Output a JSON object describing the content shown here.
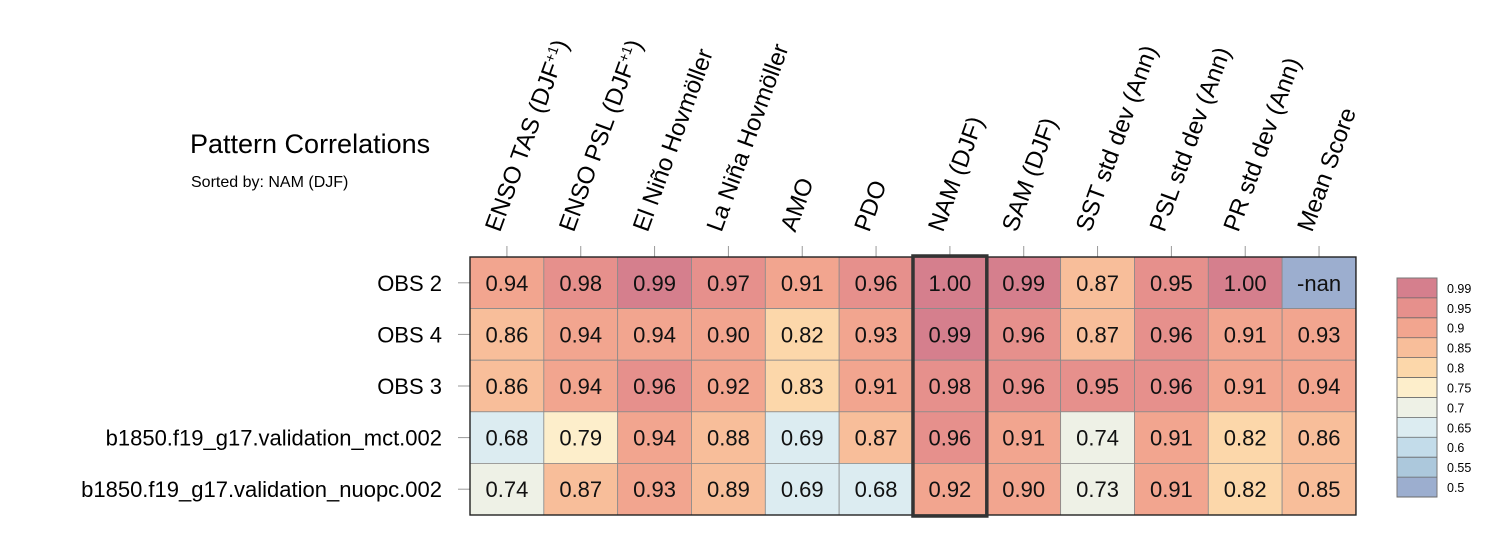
{
  "title": "Pattern Correlations",
  "subtitle": "Sorted by: NAM (DJF)",
  "chart_data": {
    "type": "heatmap",
    "columns": [
      "ENSO TAS (DJF+1)",
      "ENSO PSL (DJF+1)",
      "El Niño Hovmöller",
      "La Niña Hovmöller",
      "AMO",
      "PDO",
      "NAM (DJF)",
      "SAM (DJF)",
      "SST std dev (Ann)",
      "PSL std dev (Ann)",
      "PR std dev (Ann)",
      "Mean Score"
    ],
    "rows": [
      "OBS 2",
      "OBS 4",
      "OBS 3",
      "b1850.f19_g17.validation_mct.002",
      "b1850.f19_g17.validation_nuopc.002"
    ],
    "cells": [
      [
        "0.94",
        "0.98",
        "0.99",
        "0.97",
        "0.91",
        "0.96",
        "1.00",
        "0.99",
        "0.87",
        "0.95",
        "1.00",
        "-nan"
      ],
      [
        "0.86",
        "0.94",
        "0.94",
        "0.90",
        "0.82",
        "0.93",
        "0.99",
        "0.96",
        "0.87",
        "0.96",
        "0.91",
        "0.93"
      ],
      [
        "0.86",
        "0.94",
        "0.96",
        "0.92",
        "0.83",
        "0.91",
        "0.98",
        "0.96",
        "0.95",
        "0.96",
        "0.91",
        "0.94"
      ],
      [
        "0.68",
        "0.79",
        "0.94",
        "0.88",
        "0.69",
        "0.87",
        "0.96",
        "0.91",
        "0.74",
        "0.91",
        "0.82",
        "0.86"
      ],
      [
        "0.74",
        "0.87",
        "0.93",
        "0.89",
        "0.69",
        "0.68",
        "0.92",
        "0.90",
        "0.73",
        "0.91",
        "0.82",
        "0.85"
      ]
    ],
    "highlighted_column": "NAM (DJF)",
    "colorbar": {
      "labels": [
        "0.99",
        "0.95",
        "0.9",
        "0.85",
        "0.8",
        "0.75",
        "0.7",
        "0.65",
        "0.6",
        "0.55",
        "0.5"
      ],
      "colors": [
        "#d57f8d",
        "#e6908c",
        "#f2a58f",
        "#f8be9a",
        "#fcd7aa",
        "#fdeecb",
        "#eef1e6",
        "#dcecf1",
        "#c3dcea",
        "#acc8dc",
        "#9caecf"
      ]
    },
    "nan_color": "#9caecf"
  }
}
